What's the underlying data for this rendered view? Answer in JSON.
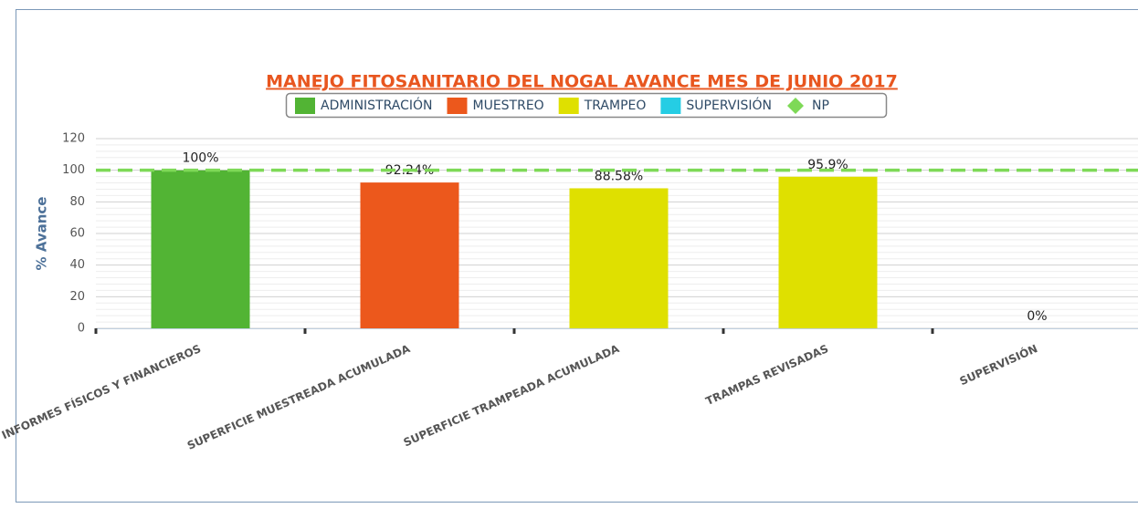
{
  "chart_data": {
    "type": "bar",
    "title": "MANEJO FITOSANITARIO DEL NOGAL AVANCE MES DE JUNIO 2017",
    "y_label": "% Avance",
    "categories": [
      "INFORMES FÍSICOS Y FINANCIEROS",
      "SUPERFICIE MUESTREADA ACUMULADA",
      "SUPERFICIE TRAMPEADA ACUMULADA",
      "TRAMPAS REVISADAS",
      "SUPERVISIÓN"
    ],
    "series": [
      {
        "name": "ADMINISTRACIÓN",
        "color": "#52b434",
        "values": [
          100,
          null,
          null,
          null,
          null
        ],
        "value_labels": [
          "100%",
          null,
          null,
          null,
          null
        ]
      },
      {
        "name": "MUESTREO",
        "color": "#ec581c",
        "values": [
          null,
          92.24,
          null,
          null,
          null
        ],
        "value_labels": [
          null,
          "92.24%",
          null,
          null,
          null
        ]
      },
      {
        "name": "TRAMPEO",
        "color": "#dfe000",
        "values": [
          null,
          null,
          88.58,
          95.9,
          null
        ],
        "value_labels": [
          null,
          null,
          "88.58%",
          "95.9%",
          null
        ]
      },
      {
        "name": "SUPERVISIÓN",
        "color": "#25cde4",
        "values": [
          null,
          null,
          null,
          null,
          0
        ],
        "value_labels": [
          null,
          null,
          null,
          null,
          "0%"
        ]
      },
      {
        "name": "NP",
        "type": "line",
        "color": "#7ed957",
        "values": [
          100,
          100,
          100,
          100,
          100
        ]
      }
    ],
    "ylim": [
      0,
      120
    ],
    "yticks": [
      0,
      20,
      40,
      60,
      80,
      100,
      120
    ],
    "grid": true
  }
}
